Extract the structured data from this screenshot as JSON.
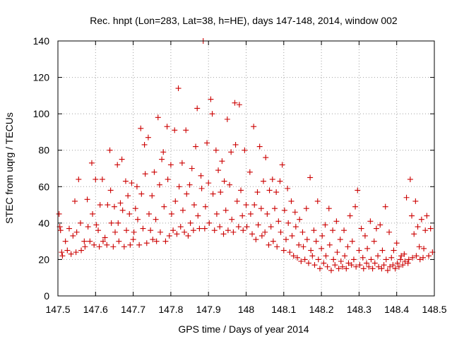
{
  "chart_data": {
    "type": "scatter",
    "title": "Rec. hnpt (Lon=283, Lat=38, h=HE), days 147-148, 2014, window 002",
    "xlabel": "GPS time / Days of year 2014",
    "ylabel": "STEC from uqrg / TECUs",
    "xlim": [
      147.5,
      148.5
    ],
    "ylim": [
      0,
      140
    ],
    "xticks": [
      "147.5",
      "147.6",
      "147.7",
      "147.8",
      "147.9",
      "148",
      "148.1",
      "148.2",
      "148.3",
      "148.4",
      "148.5"
    ],
    "yticks": [
      "0",
      "20",
      "40",
      "60",
      "80",
      "100",
      "120",
      "140"
    ],
    "grid": true,
    "marker": "+",
    "color": "#cc0000",
    "series": [
      {
        "points": [
          [
            147.503,
            45
          ],
          [
            147.505,
            38
          ],
          [
            147.507,
            36
          ],
          [
            147.51,
            24
          ],
          [
            147.512,
            22
          ],
          [
            147.52,
            30
          ],
          [
            147.525,
            25
          ],
          [
            147.53,
            37
          ],
          [
            147.535,
            23
          ],
          [
            147.54,
            33
          ],
          [
            147.545,
            52
          ],
          [
            147.548,
            24
          ],
          [
            147.55,
            35
          ],
          [
            147.555,
            64
          ],
          [
            147.56,
            40
          ],
          [
            147.562,
            25
          ],
          [
            147.57,
            30
          ],
          [
            147.572,
            27
          ],
          [
            147.578,
            53
          ],
          [
            147.58,
            38
          ],
          [
            147.585,
            30
          ],
          [
            147.59,
            73
          ],
          [
            147.592,
            45
          ],
          [
            147.596,
            28
          ],
          [
            147.6,
            64
          ],
          [
            147.602,
            39
          ],
          [
            147.607,
            36
          ],
          [
            147.61,
            27
          ],
          [
            147.612,
            50
          ],
          [
            147.618,
            64
          ],
          [
            147.62,
            30
          ],
          [
            147.625,
            32
          ],
          [
            147.63,
            28
          ],
          [
            147.632,
            50
          ],
          [
            147.638,
            80
          ],
          [
            147.64,
            58
          ],
          [
            147.642,
            40
          ],
          [
            147.647,
            27
          ],
          [
            147.65,
            49
          ],
          [
            147.652,
            35
          ],
          [
            147.658,
            72
          ],
          [
            147.66,
            40
          ],
          [
            147.662,
            30
          ],
          [
            147.666,
            51
          ],
          [
            147.67,
            75
          ],
          [
            147.672,
            47
          ],
          [
            147.676,
            27
          ],
          [
            147.68,
            63
          ],
          [
            147.682,
            36
          ],
          [
            147.686,
            55
          ],
          [
            147.69,
            45
          ],
          [
            147.692,
            28
          ],
          [
            147.696,
            62
          ],
          [
            147.7,
            31
          ],
          [
            147.702,
            35
          ],
          [
            147.706,
            48
          ],
          [
            147.71,
            60
          ],
          [
            147.712,
            42
          ],
          [
            147.716,
            28
          ],
          [
            147.72,
            92
          ],
          [
            147.722,
            56
          ],
          [
            147.726,
            37
          ],
          [
            147.73,
            83
          ],
          [
            147.732,
            67
          ],
          [
            147.736,
            29
          ],
          [
            147.74,
            87
          ],
          [
            147.742,
            45
          ],
          [
            147.746,
            36
          ],
          [
            147.75,
            55
          ],
          [
            147.752,
            31
          ],
          [
            147.756,
            68
          ],
          [
            147.76,
            42
          ],
          [
            147.762,
            30
          ],
          [
            147.766,
            98
          ],
          [
            147.77,
            61
          ],
          [
            147.772,
            35
          ],
          [
            147.776,
            75
          ],
          [
            147.78,
            79
          ],
          [
            147.782,
            49
          ],
          [
            147.786,
            30
          ],
          [
            147.79,
            93
          ],
          [
            147.792,
            64
          ],
          [
            147.796,
            33
          ],
          [
            147.8,
            72
          ],
          [
            147.802,
            45
          ],
          [
            147.806,
            36
          ],
          [
            147.81,
            91
          ],
          [
            147.812,
            52
          ],
          [
            147.816,
            34
          ],
          [
            147.82,
            114
          ],
          [
            147.822,
            60
          ],
          [
            147.826,
            38
          ],
          [
            147.83,
            73
          ],
          [
            147.832,
            47
          ],
          [
            147.836,
            35
          ],
          [
            147.84,
            91
          ],
          [
            147.842,
            56
          ],
          [
            147.846,
            33
          ],
          [
            147.85,
            61
          ],
          [
            147.852,
            40
          ],
          [
            147.856,
            70
          ],
          [
            147.86,
            36
          ],
          [
            147.862,
            50
          ],
          [
            147.866,
            82
          ],
          [
            147.87,
            103
          ],
          [
            147.872,
            44
          ],
          [
            147.876,
            37
          ],
          [
            147.88,
            66
          ],
          [
            147.882,
            59
          ],
          [
            147.886,
            140
          ],
          [
            147.89,
            37
          ],
          [
            147.892,
            49
          ],
          [
            147.896,
            84
          ],
          [
            147.9,
            62
          ],
          [
            147.902,
            40
          ],
          [
            147.906,
            108
          ],
          [
            147.91,
            100
          ],
          [
            147.912,
            56
          ],
          [
            147.916,
            36
          ],
          [
            147.92,
            80
          ],
          [
            147.922,
            45
          ],
          [
            147.926,
            69
          ],
          [
            147.93,
            38
          ],
          [
            147.932,
            57
          ],
          [
            147.936,
            74
          ],
          [
            147.94,
            34
          ],
          [
            147.942,
            63
          ],
          [
            147.946,
            47
          ],
          [
            147.95,
            97
          ],
          [
            147.952,
            36
          ],
          [
            147.956,
            61
          ],
          [
            147.96,
            79
          ],
          [
            147.962,
            42
          ],
          [
            147.966,
            35
          ],
          [
            147.97,
            106
          ],
          [
            147.972,
            83
          ],
          [
            147.976,
            52
          ],
          [
            147.98,
            38
          ],
          [
            147.982,
            105
          ],
          [
            147.986,
            58
          ],
          [
            147.99,
            44
          ],
          [
            147.992,
            36
          ],
          [
            147.996,
            80
          ],
          [
            148.0,
            50
          ],
          [
            148.002,
            38
          ],
          [
            148.01,
            68
          ],
          [
            148.012,
            45
          ],
          [
            148.016,
            34
          ],
          [
            148.02,
            93
          ],
          [
            148.022,
            50
          ],
          [
            148.026,
            31
          ],
          [
            148.03,
            57
          ],
          [
            148.032,
            39
          ],
          [
            148.036,
            82
          ],
          [
            148.04,
            48
          ],
          [
            148.042,
            33
          ],
          [
            148.046,
            63
          ],
          [
            148.05,
            35
          ],
          [
            148.052,
            76
          ],
          [
            148.056,
            45
          ],
          [
            148.06,
            28
          ],
          [
            148.062,
            58
          ],
          [
            148.066,
            38
          ],
          [
            148.07,
            64
          ],
          [
            148.072,
            30
          ],
          [
            148.076,
            48
          ],
          [
            148.08,
            57
          ],
          [
            148.082,
            27
          ],
          [
            148.086,
            41
          ],
          [
            148.09,
            63
          ],
          [
            148.092,
            35
          ],
          [
            148.096,
            72
          ],
          [
            148.1,
            25
          ],
          [
            148.102,
            47
          ],
          [
            148.106,
            31
          ],
          [
            148.11,
            59
          ],
          [
            148.112,
            40
          ],
          [
            148.116,
            24
          ],
          [
            148.12,
            52
          ],
          [
            148.122,
            33
          ],
          [
            148.126,
            22
          ],
          [
            148.13,
            46
          ],
          [
            148.132,
            38
          ],
          [
            148.136,
            21
          ],
          [
            148.14,
            28
          ],
          [
            148.142,
            42
          ],
          [
            148.146,
            19
          ],
          [
            148.15,
            35
          ],
          [
            148.152,
            27
          ],
          [
            148.156,
            20
          ],
          [
            148.16,
            48
          ],
          [
            148.162,
            31
          ],
          [
            148.166,
            18
          ],
          [
            148.17,
            65
          ],
          [
            148.172,
            25
          ],
          [
            148.176,
            22
          ],
          [
            148.18,
            36
          ],
          [
            148.182,
            17
          ],
          [
            148.186,
            30
          ],
          [
            148.19,
            52
          ],
          [
            148.192,
            20
          ],
          [
            148.196,
            15
          ],
          [
            148.2,
            26
          ],
          [
            148.202,
            33
          ],
          [
            148.206,
            18
          ],
          [
            148.21,
            39
          ],
          [
            148.212,
            22
          ],
          [
            148.216,
            16
          ],
          [
            148.22,
            48
          ],
          [
            148.222,
            28
          ],
          [
            148.226,
            14
          ],
          [
            148.23,
            36
          ],
          [
            148.232,
            20
          ],
          [
            148.236,
            17
          ],
          [
            148.24,
            41
          ],
          [
            148.242,
            24
          ],
          [
            148.246,
            15
          ],
          [
            148.25,
            31
          ],
          [
            148.252,
            19
          ],
          [
            148.256,
            16
          ],
          [
            148.26,
            36
          ],
          [
            148.262,
            22
          ],
          [
            148.266,
            15
          ],
          [
            148.27,
            27
          ],
          [
            148.272,
            18
          ],
          [
            148.276,
            44
          ],
          [
            148.28,
            17
          ],
          [
            148.282,
            30
          ],
          [
            148.286,
            20
          ],
          [
            148.29,
            49
          ],
          [
            148.292,
            16
          ],
          [
            148.296,
            58
          ],
          [
            148.3,
            25
          ],
          [
            148.302,
            17
          ],
          [
            148.306,
            37
          ],
          [
            148.31,
            21
          ],
          [
            148.312,
            15
          ],
          [
            148.316,
            33
          ],
          [
            148.32,
            18
          ],
          [
            148.322,
            26
          ],
          [
            148.326,
            16
          ],
          [
            148.33,
            41
          ],
          [
            148.332,
            20
          ],
          [
            148.336,
            15
          ],
          [
            148.34,
            30
          ],
          [
            148.342,
            18
          ],
          [
            148.346,
            37
          ],
          [
            148.35,
            22
          ],
          [
            148.352,
            16
          ],
          [
            148.356,
            39
          ],
          [
            148.36,
            15
          ],
          [
            148.362,
            25
          ],
          [
            148.366,
            17
          ],
          [
            148.37,
            49
          ],
          [
            148.372,
            20
          ],
          [
            148.376,
            14
          ],
          [
            148.38,
            35
          ],
          [
            148.382,
            16
          ],
          [
            148.386,
            21
          ],
          [
            148.39,
            17
          ],
          [
            148.392,
            25
          ],
          [
            148.396,
            15
          ],
          [
            148.4,
            29
          ],
          [
            148.402,
            18
          ],
          [
            148.406,
            16
          ],
          [
            148.41,
            20
          ],
          [
            148.412,
            22
          ],
          [
            148.416,
            17
          ],
          [
            148.42,
            23
          ],
          [
            148.422,
            19
          ],
          [
            148.426,
            54
          ],
          [
            148.43,
            18
          ],
          [
            148.432,
            20
          ],
          [
            148.436,
            64
          ],
          [
            148.44,
            44
          ],
          [
            148.442,
            21
          ],
          [
            148.446,
            34
          ],
          [
            148.45,
            52
          ],
          [
            148.452,
            22
          ],
          [
            148.456,
            38
          ],
          [
            148.46,
            27
          ],
          [
            148.462,
            20
          ],
          [
            148.466,
            42
          ],
          [
            148.47,
            21
          ],
          [
            148.472,
            26
          ],
          [
            148.476,
            36
          ],
          [
            148.48,
            44
          ],
          [
            148.485,
            22
          ],
          [
            148.49,
            37
          ],
          [
            148.495,
            24
          ]
        ]
      }
    ]
  }
}
